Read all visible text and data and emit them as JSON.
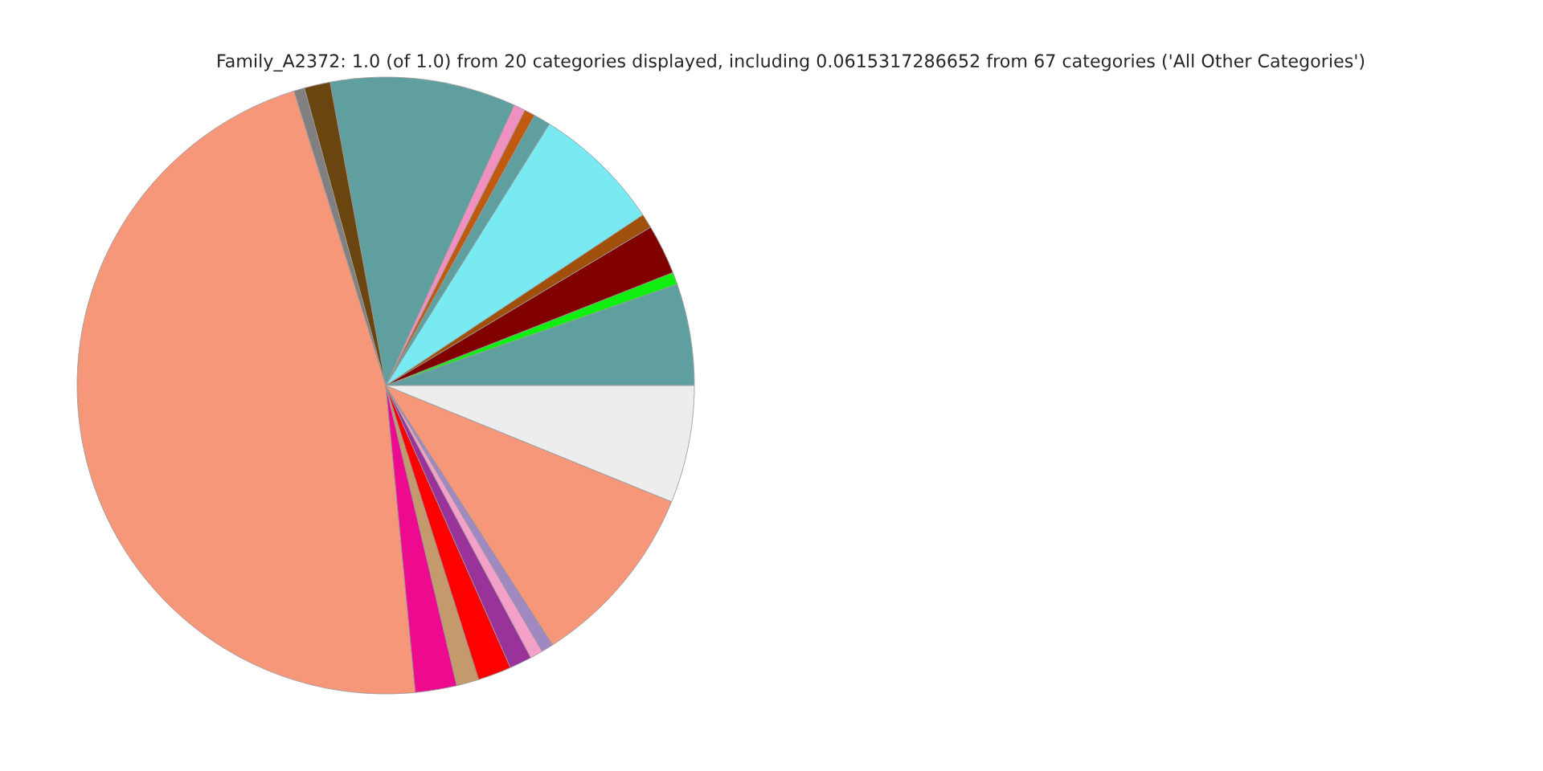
{
  "chart_data": {
    "type": "pie",
    "title": "Family_A2372: 1.0 (of 1.0) from 20 categories displayed, including 0.0615317286652 from 67 categories ('All Other Categories')",
    "categories": [
      null,
      null,
      null,
      null,
      null,
      null,
      null,
      null,
      null,
      null,
      null,
      null,
      null,
      null,
      null,
      null,
      null,
      null,
      null,
      null
    ],
    "values": [
      5.33,
      0.64,
      2.61,
      0.75,
      6.78,
      0.89,
      0.56,
      0.61,
      9.72,
      1.36,
      0.56,
      46.72,
      2.17,
      1.17,
      1.75,
      1.17,
      0.67,
      0.64,
      9.75,
      6.15
    ],
    "colors": [
      "#5f9f9f",
      "#10f010",
      "#800000",
      "#a0500a",
      "#7aeaf2",
      "#5f9f9f",
      "#c05a10",
      "#f090c0",
      "#5f9f9f",
      "#6b4510",
      "#808080",
      "#f7977a",
      "#ee0a8e",
      "#c49a6c",
      "#ff0000",
      "#993399",
      "#f4a0c8",
      "#a088c0",
      "#f7977a",
      "#ededed"
    ]
  }
}
